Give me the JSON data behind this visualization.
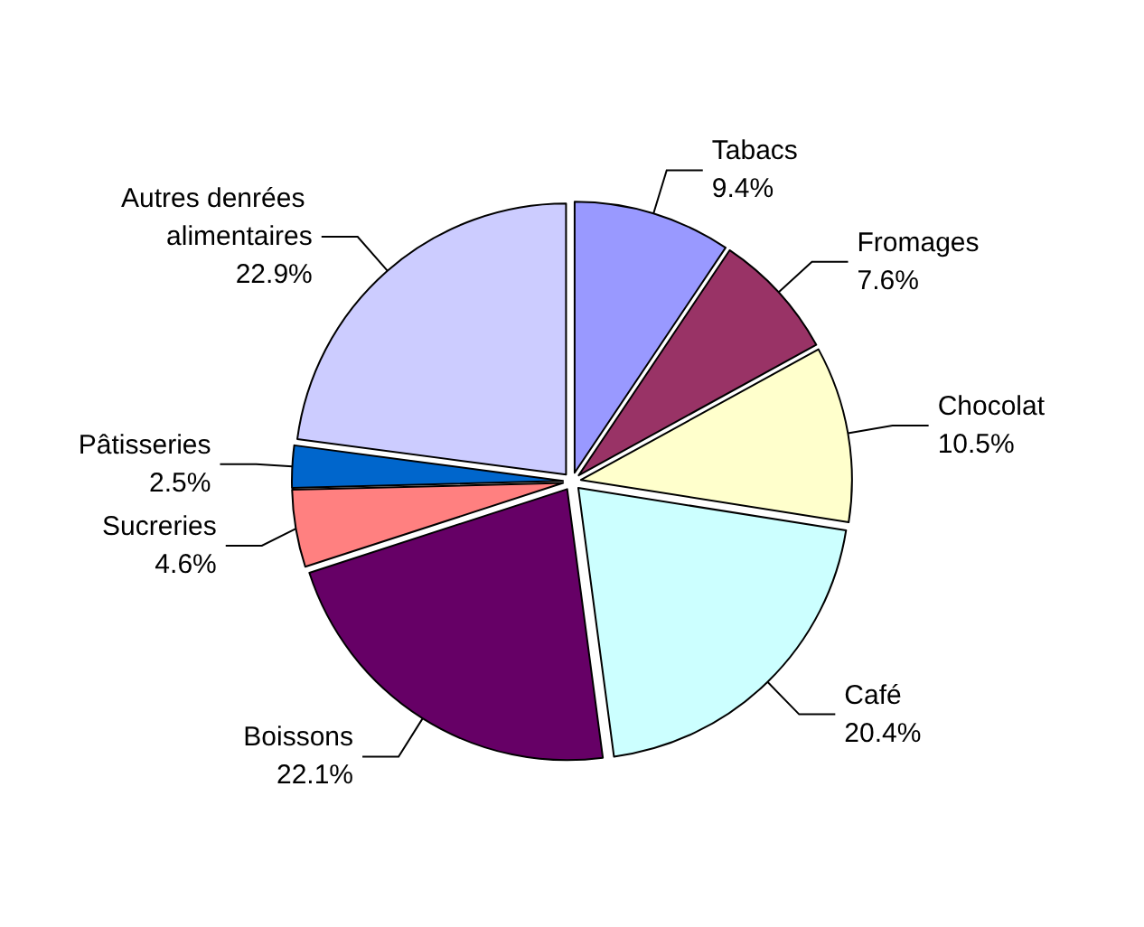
{
  "chart_data": {
    "type": "pie",
    "categories": [
      "Tabacs",
      "Fromages",
      "Chocolat",
      "Café",
      "Boissons",
      "Sucreries",
      "Pâtisseries",
      "Autres denrées alimentaires"
    ],
    "values": [
      9.4,
      7.6,
      10.5,
      20.4,
      22.1,
      4.6,
      2.5,
      22.9
    ],
    "colors": [
      "#9999ff",
      "#993366",
      "#ffffcc",
      "#ccffff",
      "#660066",
      "#ff8080",
      "#0066cc",
      "#ccccff"
    ],
    "value_labels": [
      "9.4%",
      "7.6%",
      "10.5%",
      "20.4%",
      "22.1%",
      "4.6%",
      "2.5%",
      "22.9%"
    ],
    "legend": false
  }
}
